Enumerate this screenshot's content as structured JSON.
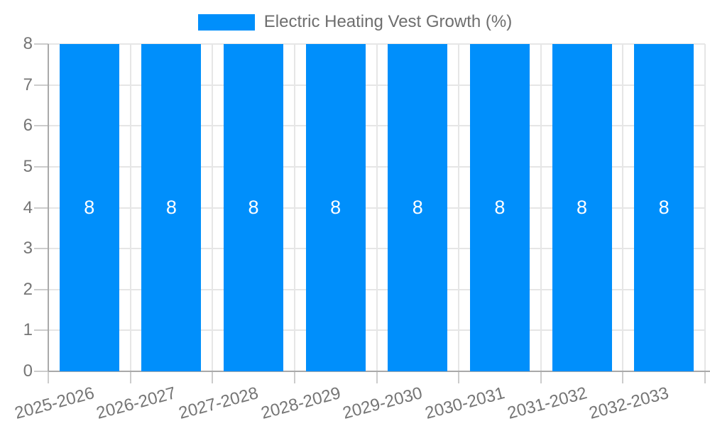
{
  "legend": {
    "label": "Electric Heating Vest Growth (%)",
    "swatch_color": "#008FFB"
  },
  "chart_data": {
    "type": "bar",
    "title": "",
    "xlabel": "",
    "ylabel": "",
    "categories": [
      "2025-2026",
      "2026-2027",
      "2027-2028",
      "2028-2029",
      "2029-2030",
      "2030-2031",
      "2031-2032",
      "2032-2033"
    ],
    "series": [
      {
        "name": "Electric Heating Vest Growth (%)",
        "values": [
          8,
          8,
          8,
          8,
          8,
          8,
          8,
          8
        ],
        "color": "#008FFB"
      }
    ],
    "value_labels": [
      "8",
      "8",
      "8",
      "8",
      "8",
      "8",
      "8",
      "8"
    ],
    "ylim": [
      0,
      8
    ],
    "yticks": [
      0,
      1,
      2,
      3,
      4,
      5,
      6,
      7,
      8
    ],
    "grid": true,
    "legend_position": "top",
    "x_tick_rotation_deg": -15
  },
  "colors": {
    "bar": "#008FFB",
    "grid_line": "#e6e6e6",
    "axis_line": "#a9a9a9",
    "tick_line": "#cccccc",
    "axis_label_text": "#757575",
    "legend_text": "#6e6e6e",
    "value_label_text": "#ffffff",
    "background": "#ffffff"
  }
}
